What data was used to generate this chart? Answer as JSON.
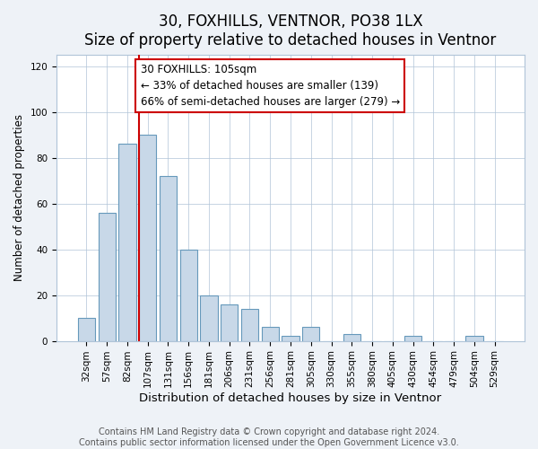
{
  "title": "30, FOXHILLS, VENTNOR, PO38 1LX",
  "subtitle": "Size of property relative to detached houses in Ventnor",
  "xlabel": "Distribution of detached houses by size in Ventnor",
  "ylabel": "Number of detached properties",
  "footer_line1": "Contains HM Land Registry data © Crown copyright and database right 2024.",
  "footer_line2": "Contains public sector information licensed under the Open Government Licence v3.0.",
  "bar_labels": [
    "32sqm",
    "57sqm",
    "82sqm",
    "107sqm",
    "131sqm",
    "156sqm",
    "181sqm",
    "206sqm",
    "231sqm",
    "256sqm",
    "281sqm",
    "305sqm",
    "330sqm",
    "355sqm",
    "380sqm",
    "405sqm",
    "430sqm",
    "454sqm",
    "479sqm",
    "504sqm",
    "529sqm"
  ],
  "bar_values": [
    10,
    56,
    86,
    90,
    72,
    40,
    20,
    16,
    14,
    6,
    2,
    6,
    0,
    3,
    0,
    0,
    2,
    0,
    0,
    2,
    0
  ],
  "bar_color": "#c8d8e8",
  "bar_edge_color": "#6699bb",
  "vline_index": 3,
  "vline_color": "#cc0000",
  "annotation_title": "30 FOXHILLS: 105sqm",
  "annotation_line2": "← 33% of detached houses are smaller (139)",
  "annotation_line3": "66% of semi-detached houses are larger (279) →",
  "annotation_box_color": "#ffffff",
  "annotation_box_edge": "#cc0000",
  "ylim": [
    0,
    125
  ],
  "yticks": [
    0,
    20,
    40,
    60,
    80,
    100,
    120
  ],
  "background_color": "#eef2f7",
  "plot_background": "#ffffff",
  "grid_color": "#b0c4d8",
  "title_fontsize": 12,
  "subtitle_fontsize": 10.5,
  "xlabel_fontsize": 9.5,
  "ylabel_fontsize": 8.5,
  "tick_fontsize": 7.5,
  "annotation_fontsize": 8.5,
  "footer_fontsize": 7
}
